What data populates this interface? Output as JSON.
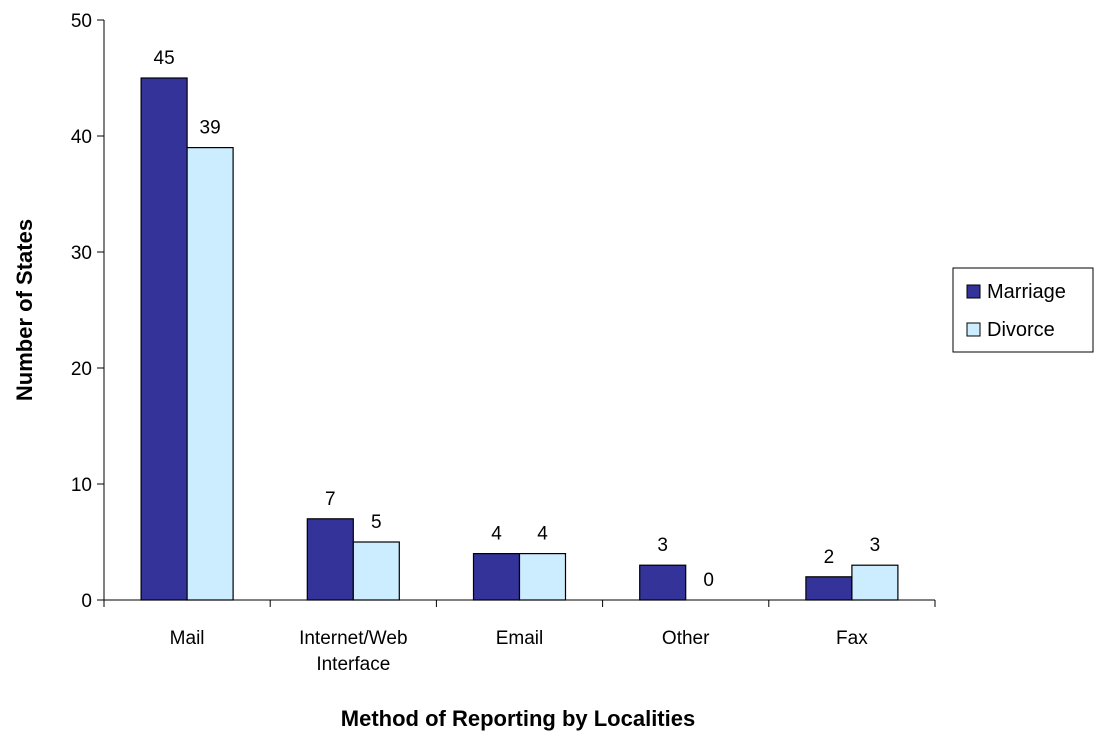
{
  "chart_data": {
    "type": "bar",
    "title": "",
    "xlabel": "Method of Reporting by Localities",
    "ylabel": "Number of States",
    "categories": [
      [
        "Mail"
      ],
      [
        "Internet/Web",
        "Interface"
      ],
      [
        "Email"
      ],
      [
        "Other"
      ],
      [
        "Fax"
      ]
    ],
    "series": [
      {
        "name": "Marriage",
        "values": [
          45,
          7,
          4,
          3,
          2
        ],
        "color": "#333399"
      },
      {
        "name": "Divorce",
        "values": [
          39,
          5,
          4,
          0,
          3
        ],
        "color": "#ccecff"
      }
    ],
    "ylim": [
      0,
      50
    ],
    "yticks": [
      0,
      10,
      20,
      30,
      40,
      50
    ],
    "grid": false,
    "legend_position": "right"
  }
}
